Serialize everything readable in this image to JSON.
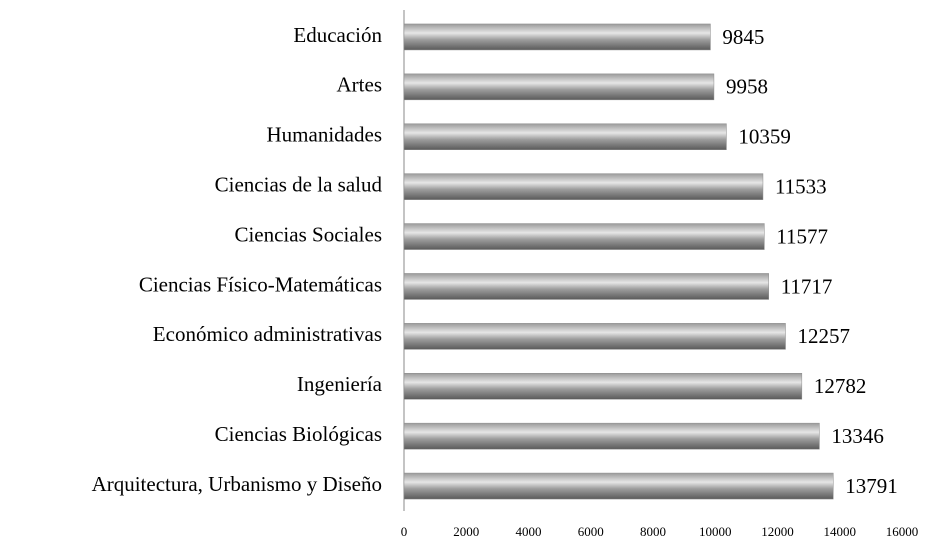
{
  "chart_data": {
    "type": "bar",
    "orientation": "horizontal",
    "categories": [
      "Educación",
      "Artes",
      "Humanidades",
      "Ciencias de la salud",
      "Ciencias Sociales",
      "Ciencias Físico-Matemáticas",
      "Económico administrativas",
      "Ingeniería",
      "Ciencias Biológicas",
      "Arquitectura, Urbanismo y Diseño"
    ],
    "values": [
      9845,
      9958,
      10359,
      11533,
      11577,
      11717,
      12257,
      12782,
      13346,
      13791
    ],
    "color": "#8c8c8c",
    "xlim": [
      0,
      16000
    ],
    "xticks": [
      0,
      2000,
      4000,
      6000,
      8000,
      10000,
      12000,
      14000,
      16000
    ],
    "grid": false
  }
}
